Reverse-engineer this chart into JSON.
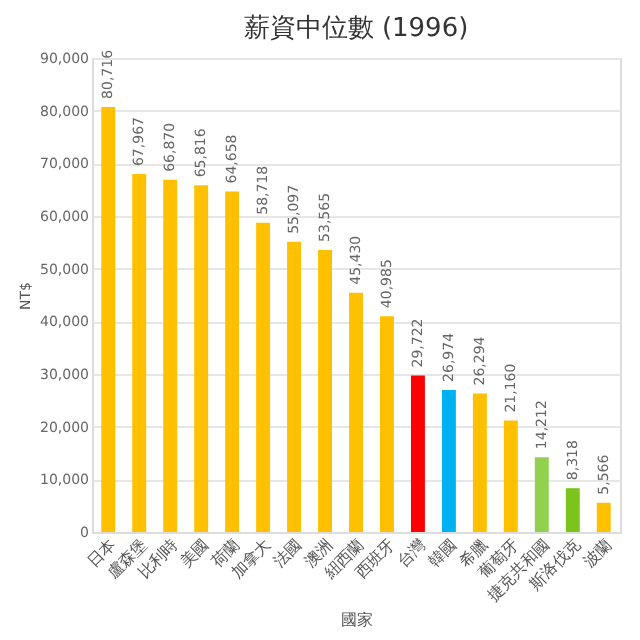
{
  "chart_data": {
    "type": "bar",
    "title": "薪資中位數 (1996)",
    "xlabel": "國家",
    "ylabel": "NT$",
    "categories": [
      "日本",
      "盧森堡",
      "比利時",
      "美國",
      "荷蘭",
      "加拿大",
      "法國",
      "澳洲",
      "紐西蘭",
      "西班牙",
      "台灣",
      "韓國",
      "希臘",
      "葡萄牙",
      "捷克共和國",
      "斯洛伐克",
      "波蘭"
    ],
    "values": [
      80716,
      67967,
      66870,
      65816,
      64658,
      58718,
      55097,
      53565,
      45430,
      40985,
      29722,
      26974,
      26294,
      21160,
      14212,
      8318,
      5566
    ],
    "colors": [
      "#ffc000",
      "#ffc000",
      "#ffc000",
      "#ffc000",
      "#ffc000",
      "#ffc000",
      "#ffc000",
      "#ffc000",
      "#ffc000",
      "#ffc000",
      "#ff0000",
      "#00b0f0",
      "#ffc000",
      "#ffc000",
      "#92d050",
      "#7cc41c",
      "#ffc000"
    ],
    "value_labels": [
      "80,716",
      "67,967",
      "66,870",
      "65,816",
      "64,658",
      "58,718",
      "55,097",
      "53,565",
      "45,430",
      "40,985",
      "29,722",
      "26,974",
      "26,294",
      "21,160",
      "14,212",
      "8,318",
      "5,566"
    ],
    "ylim": [
      0,
      90000
    ],
    "yticks": [
      0,
      {
        "value": 10000,
        "label": "10,000"
      },
      {
        "value": 20000,
        "label": "20,000"
      },
      {
        "value": 30000,
        "label": "30,000"
      },
      {
        "value": 40000,
        "label": "40,000"
      },
      {
        "value": 50000,
        "label": "50,000"
      },
      {
        "value": 60000,
        "label": "60,000"
      },
      {
        "value": 70000,
        "label": "70,000"
      },
      {
        "value": 80000,
        "label": "80,000"
      },
      {
        "value": 90000,
        "label": "90,000"
      }
    ],
    "grid": "y"
  }
}
